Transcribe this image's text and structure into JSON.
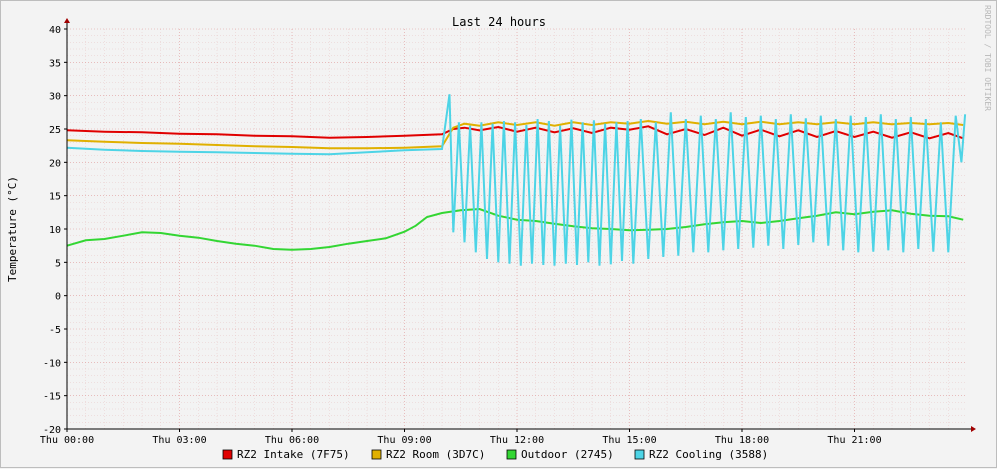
{
  "chart_data": {
    "type": "line",
    "title": "Last 24 hours",
    "ylabel": "Temperature (°C)",
    "watermark": "RRDTOOL / TOBI OETIKER",
    "ylim": [
      -20,
      40
    ],
    "y_ticks": [
      40,
      35,
      30,
      25,
      20,
      15,
      10,
      5,
      0,
      -5,
      -10,
      -15,
      -20
    ],
    "xlim_hours": [
      0,
      24
    ],
    "x_ticks": [
      {
        "h": 0,
        "label": "Thu 00:00"
      },
      {
        "h": 3,
        "label": "Thu 03:00"
      },
      {
        "h": 6,
        "label": "Thu 06:00"
      },
      {
        "h": 9,
        "label": "Thu 09:00"
      },
      {
        "h": 12,
        "label": "Thu 12:00"
      },
      {
        "h": 15,
        "label": "Thu 15:00"
      },
      {
        "h": 18,
        "label": "Thu 18:00"
      },
      {
        "h": 21,
        "label": "Thu 21:00"
      }
    ],
    "grid": true,
    "legend_position": "bottom",
    "series": [
      {
        "name": "RZ2 Intake (7F75)",
        "color": "#e00000",
        "x": [
          0,
          1,
          2,
          3,
          4,
          5,
          6,
          7,
          8,
          9,
          10,
          10.3,
          10.6,
          11,
          11.5,
          12,
          12.5,
          13,
          13.5,
          14,
          14.5,
          15,
          15.5,
          16,
          16.5,
          17,
          17.5,
          18,
          18.5,
          19,
          19.5,
          20,
          20.5,
          21,
          21.5,
          22,
          22.5,
          23,
          23.5,
          23.9
        ],
        "values": [
          24.8,
          24.6,
          24.5,
          24.3,
          24.2,
          24.0,
          23.9,
          23.7,
          23.8,
          24.0,
          24.2,
          25.0,
          25.2,
          24.8,
          25.3,
          24.6,
          25.2,
          24.5,
          25.1,
          24.4,
          25.2,
          24.9,
          25.4,
          24.2,
          25.0,
          24.1,
          25.2,
          24.0,
          24.9,
          23.9,
          24.8,
          23.8,
          24.7,
          23.8,
          24.6,
          23.7,
          24.5,
          23.6,
          24.4,
          23.6
        ]
      },
      {
        "name": "RZ2 Room (3D7C)",
        "color": "#e0b000",
        "x": [
          0,
          1,
          2,
          3,
          4,
          5,
          6,
          7,
          8,
          9,
          10,
          10.3,
          10.6,
          11,
          11.5,
          12,
          12.5,
          13,
          13.5,
          14,
          14.5,
          15,
          15.5,
          16,
          16.5,
          17,
          17.5,
          18,
          18.5,
          19,
          19.5,
          20,
          20.5,
          21,
          21.5,
          22,
          22.5,
          23,
          23.5,
          23.9
        ],
        "values": [
          23.3,
          23.1,
          22.9,
          22.8,
          22.6,
          22.4,
          22.3,
          22.1,
          22.1,
          22.2,
          22.4,
          25.2,
          25.8,
          25.5,
          26.0,
          25.6,
          26.0,
          25.5,
          26.0,
          25.6,
          26.0,
          25.8,
          26.2,
          25.8,
          26.1,
          25.7,
          26.1,
          25.7,
          26.1,
          25.7,
          26.0,
          25.7,
          26.0,
          25.7,
          26.0,
          25.7,
          25.9,
          25.7,
          25.9,
          25.6
        ]
      },
      {
        "name": "Outdoor (2745)",
        "color": "#33d633",
        "x": [
          0,
          0.5,
          1,
          1.5,
          2,
          2.5,
          3,
          3.5,
          4,
          4.5,
          5,
          5.5,
          6,
          6.5,
          7,
          7.5,
          8,
          8.5,
          9,
          9.3,
          9.6,
          10,
          10.5,
          11,
          11.5,
          12,
          12.5,
          13,
          13.5,
          14,
          14.5,
          15,
          15.5,
          16,
          16.5,
          17,
          17.5,
          18,
          18.5,
          19,
          19.5,
          20,
          20.5,
          21,
          21.5,
          22,
          22.5,
          23,
          23.5,
          23.9
        ],
        "values": [
          7.5,
          8.3,
          8.5,
          9.0,
          9.5,
          9.4,
          9.0,
          8.7,
          8.2,
          7.8,
          7.5,
          7.0,
          6.9,
          7.0,
          7.3,
          7.8,
          8.2,
          8.6,
          9.6,
          10.5,
          11.8,
          12.4,
          12.8,
          13.0,
          12.0,
          11.4,
          11.2,
          10.8,
          10.4,
          10.1,
          10.0,
          9.8,
          9.9,
          10.0,
          10.3,
          10.7,
          11.0,
          11.2,
          10.9,
          11.2,
          11.6,
          12.0,
          12.5,
          12.2,
          12.6,
          12.8,
          12.3,
          12.0,
          11.9,
          11.4
        ]
      },
      {
        "name": "RZ2 Cooling (3588)",
        "color": "#4dd4e6",
        "x": [
          0,
          1,
          2,
          3,
          4,
          5,
          6,
          7,
          8,
          9,
          10,
          10.2,
          10.3,
          10.45,
          10.6,
          10.75,
          10.9,
          11.05,
          11.2,
          11.35,
          11.5,
          11.65,
          11.8,
          11.95,
          12.1,
          12.25,
          12.4,
          12.55,
          12.7,
          12.85,
          13,
          13.15,
          13.3,
          13.45,
          13.6,
          13.75,
          13.9,
          14.05,
          14.2,
          14.35,
          14.5,
          14.65,
          14.8,
          14.95,
          15.1,
          15.3,
          15.5,
          15.7,
          15.9,
          16.1,
          16.3,
          16.5,
          16.7,
          16.9,
          17.1,
          17.3,
          17.5,
          17.7,
          17.9,
          18.1,
          18.3,
          18.5,
          18.7,
          18.9,
          19.1,
          19.3,
          19.5,
          19.7,
          19.9,
          20.1,
          20.3,
          20.5,
          20.7,
          20.9,
          21.1,
          21.3,
          21.5,
          21.7,
          21.9,
          22.1,
          22.3,
          22.5,
          22.7,
          22.9,
          23.1,
          23.3,
          23.5,
          23.7,
          23.85,
          23.95
        ],
        "values": [
          22.2,
          21.9,
          21.7,
          21.6,
          21.5,
          21.4,
          21.3,
          21.2,
          21.5,
          21.8,
          22.0,
          30.2,
          9.5,
          26.0,
          8.0,
          25.5,
          6.5,
          26.0,
          5.5,
          25.8,
          5.0,
          26.2,
          4.8,
          26.0,
          4.5,
          25.6,
          4.8,
          26.5,
          4.6,
          26.2,
          4.5,
          25.5,
          4.8,
          26.4,
          4.6,
          26.0,
          5.0,
          26.3,
          4.5,
          25.8,
          4.7,
          26.0,
          5.2,
          26.2,
          4.8,
          26.5,
          5.5,
          26.0,
          5.8,
          27.5,
          6.0,
          26.5,
          6.5,
          27.0,
          6.5,
          26.5,
          6.8,
          27.5,
          7.0,
          26.8,
          7.2,
          27.0,
          7.5,
          26.5,
          7.0,
          27.2,
          7.6,
          26.6,
          8.0,
          27.0,
          7.5,
          26.5,
          6.8,
          27.0,
          6.5,
          26.8,
          6.6,
          27.2,
          6.8,
          26.5,
          6.5,
          26.8,
          7.0,
          26.5,
          6.6,
          26.0,
          6.5,
          27.0,
          20.0,
          27.2
        ]
      }
    ]
  }
}
